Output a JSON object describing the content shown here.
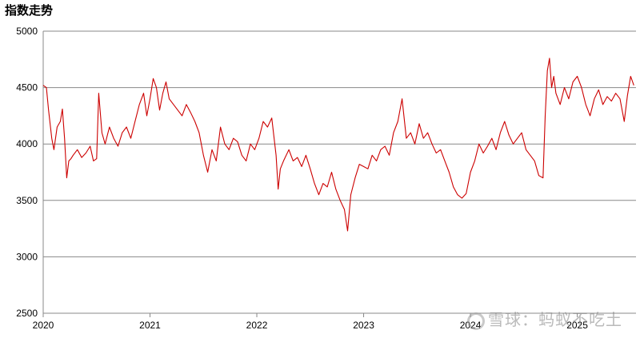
{
  "chart_data": {
    "type": "line",
    "title": "指数走势",
    "xlabel": "",
    "ylabel": "",
    "x_ticks": [
      "2020",
      "2021",
      "2022",
      "2023",
      "2024",
      "2025"
    ],
    "y_ticks": [
      2500,
      3000,
      3500,
      4000,
      4500,
      5000
    ],
    "ylim": [
      2500,
      5000
    ],
    "xlim": [
      2020.0,
      2025.55
    ],
    "grid": "horizontal",
    "series": [
      {
        "color": "#cc0000",
        "x": [
          2020.0,
          2020.03,
          2020.05,
          2020.08,
          2020.1,
          2020.13,
          2020.16,
          2020.18,
          2020.2,
          2020.22,
          2020.24,
          2020.26,
          2020.28,
          2020.32,
          2020.36,
          2020.4,
          2020.44,
          2020.47,
          2020.5,
          2020.52,
          2020.55,
          2020.58,
          2020.62,
          2020.66,
          2020.7,
          2020.74,
          2020.78,
          2020.82,
          2020.86,
          2020.9,
          2020.94,
          2020.97,
          2021.0,
          2021.03,
          2021.06,
          2021.09,
          2021.12,
          2021.15,
          2021.18,
          2021.22,
          2021.26,
          2021.3,
          2021.34,
          2021.38,
          2021.42,
          2021.46,
          2021.5,
          2021.54,
          2021.58,
          2021.62,
          2021.66,
          2021.7,
          2021.74,
          2021.78,
          2021.82,
          2021.86,
          2021.9,
          2021.94,
          2021.98,
          2022.02,
          2022.06,
          2022.1,
          2022.14,
          2022.18,
          2022.2,
          2022.22,
          2022.25,
          2022.3,
          2022.34,
          2022.38,
          2022.42,
          2022.46,
          2022.5,
          2022.54,
          2022.58,
          2022.62,
          2022.66,
          2022.7,
          2022.74,
          2022.78,
          2022.82,
          2022.85,
          2022.88,
          2022.92,
          2022.96,
          2023.0,
          2023.04,
          2023.08,
          2023.12,
          2023.16,
          2023.2,
          2023.24,
          2023.28,
          2023.32,
          2023.36,
          2023.4,
          2023.44,
          2023.48,
          2023.52,
          2023.56,
          2023.6,
          2023.64,
          2023.68,
          2023.72,
          2023.76,
          2023.8,
          2023.84,
          2023.88,
          2023.92,
          2023.96,
          2024.0,
          2024.04,
          2024.08,
          2024.12,
          2024.16,
          2024.2,
          2024.24,
          2024.28,
          2024.32,
          2024.36,
          2024.4,
          2024.44,
          2024.48,
          2024.52,
          2024.56,
          2024.6,
          2024.64,
          2024.68,
          2024.7,
          2024.72,
          2024.74,
          2024.76,
          2024.78,
          2024.8,
          2024.84,
          2024.88,
          2024.92,
          2024.96,
          2025.0,
          2025.04,
          2025.08,
          2025.1,
          2025.12,
          2025.16,
          2025.2,
          2025.24,
          2025.28,
          2025.32,
          2025.36,
          2025.4,
          2025.44,
          2025.47,
          2025.5,
          2025.53
        ],
        "y": [
          4520,
          4500,
          4300,
          4050,
          3950,
          4150,
          4200,
          4310,
          4050,
          3700,
          3850,
          3870,
          3900,
          3950,
          3880,
          3920,
          3980,
          3850,
          3870,
          4450,
          4100,
          4000,
          4150,
          4050,
          3980,
          4100,
          4150,
          4050,
          4200,
          4350,
          4450,
          4250,
          4400,
          4580,
          4500,
          4300,
          4450,
          4550,
          4400,
          4350,
          4300,
          4250,
          4350,
          4280,
          4200,
          4100,
          3900,
          3750,
          3950,
          3850,
          4150,
          4000,
          3950,
          4050,
          4020,
          3900,
          3850,
          4000,
          3950,
          4050,
          4200,
          4150,
          4230,
          3900,
          3600,
          3780,
          3850,
          3950,
          3850,
          3880,
          3800,
          3900,
          3780,
          3650,
          3550,
          3650,
          3620,
          3750,
          3600,
          3500,
          3420,
          3230,
          3550,
          3700,
          3820,
          3800,
          3780,
          3900,
          3850,
          3950,
          3980,
          3900,
          4100,
          4200,
          4400,
          4050,
          4100,
          4000,
          4180,
          4050,
          4100,
          4000,
          3920,
          3950,
          3850,
          3750,
          3620,
          3550,
          3520,
          3560,
          3750,
          3850,
          4000,
          3920,
          3980,
          4050,
          3950,
          4100,
          4200,
          4080,
          4000,
          4050,
          4100,
          3950,
          3900,
          3850,
          3720,
          3700,
          4250,
          4650,
          4760,
          4500,
          4600,
          4450,
          4350,
          4500,
          4400,
          4550,
          4600,
          4500,
          4350,
          4300,
          4250,
          4400,
          4480,
          4350,
          4420,
          4380,
          4450,
          4400,
          4200,
          4430,
          4600,
          4520
        ]
      }
    ]
  },
  "watermark": "雪球：蚂蚁不吃土"
}
